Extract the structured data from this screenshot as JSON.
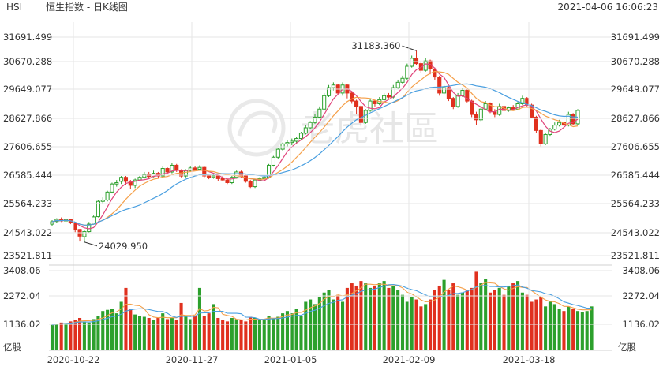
{
  "header": {
    "symbol": "HSI",
    "title": "恒生指数 - 日K线图",
    "timestamp": "2021-04-06 16:06:23"
  },
  "watermark": {
    "text": "老虎社區"
  },
  "colors": {
    "up": "#2ca02c",
    "down": "#e0301e",
    "ma5": "#e0457b",
    "ma10": "#f5a04a",
    "ma20": "#4a9fe0",
    "grid": "#e6e6e6",
    "axis_text": "#333333"
  },
  "chart_data": [
    {
      "type": "candlestick",
      "title": "",
      "x_tick_labels": [
        "2020-10-22",
        "2020-11-27",
        "2021-01-05",
        "2021-02-09",
        "2021-03-18"
      ],
      "y_tick_labels": [
        "31691.499",
        "30670.288",
        "29649.077",
        "28627.866",
        "27606.655",
        "26585.444",
        "25564.233",
        "24543.022",
        "23521.811"
      ],
      "ylim": [
        23400,
        32000
      ],
      "high_annotation": {
        "label": "31183.360",
        "value": 31183.36
      },
      "low_annotation": {
        "label": "24029.950",
        "value": 24029.95
      },
      "moving_averages": [
        "MA5",
        "MA10",
        "MA20"
      ],
      "candles": [
        {
          "o": 24700,
          "c": 24790,
          "h": 24850,
          "l": 24640
        },
        {
          "o": 24800,
          "c": 24880,
          "h": 24920,
          "l": 24750
        },
        {
          "o": 24880,
          "c": 24820,
          "h": 24950,
          "l": 24780
        },
        {
          "o": 24820,
          "c": 24880,
          "h": 24910,
          "l": 24770
        },
        {
          "o": 24870,
          "c": 24760,
          "h": 24900,
          "l": 24700
        },
        {
          "o": 24760,
          "c": 24500,
          "h": 24780,
          "l": 24400
        },
        {
          "o": 24500,
          "c": 24250,
          "h": 24520,
          "l": 24050
        },
        {
          "o": 24230,
          "c": 24420,
          "h": 24480,
          "l": 24029.95
        },
        {
          "o": 24420,
          "c": 24700,
          "h": 24780,
          "l": 24380
        },
        {
          "o": 24700,
          "c": 24970,
          "h": 25020,
          "l": 24680
        },
        {
          "o": 24980,
          "c": 25550,
          "h": 25600,
          "l": 24950
        },
        {
          "o": 25550,
          "c": 25600,
          "h": 25700,
          "l": 25450
        },
        {
          "o": 25600,
          "c": 25900,
          "h": 25950,
          "l": 25550
        },
        {
          "o": 25900,
          "c": 26200,
          "h": 26250,
          "l": 25850
        },
        {
          "o": 26200,
          "c": 26250,
          "h": 26350,
          "l": 26100
        },
        {
          "o": 26300,
          "c": 26450,
          "h": 26500,
          "l": 26200
        },
        {
          "o": 26450,
          "c": 26300,
          "h": 26500,
          "l": 26150
        },
        {
          "o": 26300,
          "c": 26150,
          "h": 26350,
          "l": 26000
        },
        {
          "o": 26150,
          "c": 26350,
          "h": 26400,
          "l": 26050
        },
        {
          "o": 26350,
          "c": 26450,
          "h": 26500,
          "l": 26300
        },
        {
          "o": 26450,
          "c": 26550,
          "h": 26650,
          "l": 26400
        },
        {
          "o": 26550,
          "c": 26480,
          "h": 26650,
          "l": 26400
        },
        {
          "o": 26480,
          "c": 26600,
          "h": 26700,
          "l": 26450
        },
        {
          "o": 26600,
          "c": 26500,
          "h": 26650,
          "l": 26400
        },
        {
          "o": 26500,
          "c": 26780,
          "h": 26850,
          "l": 26450
        },
        {
          "o": 26780,
          "c": 26650,
          "h": 26820,
          "l": 26600
        },
        {
          "o": 26650,
          "c": 26900,
          "h": 26980,
          "l": 26600
        },
        {
          "o": 26900,
          "c": 26720,
          "h": 26950,
          "l": 26650
        },
        {
          "o": 26720,
          "c": 26500,
          "h": 26750,
          "l": 26450
        },
        {
          "o": 26500,
          "c": 26700,
          "h": 26750,
          "l": 26450
        },
        {
          "o": 26700,
          "c": 26800,
          "h": 26850,
          "l": 26650
        },
        {
          "o": 26800,
          "c": 26750,
          "h": 26880,
          "l": 26700
        },
        {
          "o": 26750,
          "c": 26820,
          "h": 26900,
          "l": 26700
        },
        {
          "o": 26820,
          "c": 26500,
          "h": 26850,
          "l": 26450
        },
        {
          "o": 26500,
          "c": 26450,
          "h": 26550,
          "l": 26380
        },
        {
          "o": 26450,
          "c": 26500,
          "h": 26580,
          "l": 26400
        },
        {
          "o": 26500,
          "c": 26400,
          "h": 26550,
          "l": 26300
        },
        {
          "o": 26400,
          "c": 26350,
          "h": 26500,
          "l": 26300
        },
        {
          "o": 26350,
          "c": 26250,
          "h": 26400,
          "l": 26200
        },
        {
          "o": 26250,
          "c": 26450,
          "h": 26500,
          "l": 26200
        },
        {
          "o": 26450,
          "c": 26650,
          "h": 26700,
          "l": 26400
        },
        {
          "o": 26650,
          "c": 26500,
          "h": 26700,
          "l": 26450
        },
        {
          "o": 26500,
          "c": 26300,
          "h": 26550,
          "l": 26250
        },
        {
          "o": 26300,
          "c": 26100,
          "h": 26350,
          "l": 26050
        },
        {
          "o": 26100,
          "c": 26350,
          "h": 26400,
          "l": 26050
        },
        {
          "o": 26350,
          "c": 26400,
          "h": 26450,
          "l": 26300
        },
        {
          "o": 26400,
          "c": 26450,
          "h": 26500,
          "l": 26350
        },
        {
          "o": 26450,
          "c": 26900,
          "h": 26950,
          "l": 26400
        },
        {
          "o": 26900,
          "c": 27200,
          "h": 27250,
          "l": 26850
        },
        {
          "o": 27200,
          "c": 27500,
          "h": 27550,
          "l": 27150
        },
        {
          "o": 27500,
          "c": 27700,
          "h": 27750,
          "l": 27450
        },
        {
          "o": 27700,
          "c": 27750,
          "h": 27850,
          "l": 27600
        },
        {
          "o": 27750,
          "c": 27800,
          "h": 27900,
          "l": 27650
        },
        {
          "o": 27800,
          "c": 27900,
          "h": 27950,
          "l": 27700
        },
        {
          "o": 27900,
          "c": 28100,
          "h": 28150,
          "l": 27850
        },
        {
          "o": 28100,
          "c": 28300,
          "h": 28400,
          "l": 28050
        },
        {
          "o": 28300,
          "c": 28500,
          "h": 28550,
          "l": 28250
        },
        {
          "o": 28500,
          "c": 28700,
          "h": 28800,
          "l": 28450
        },
        {
          "o": 28700,
          "c": 29000,
          "h": 29100,
          "l": 28650
        },
        {
          "o": 29000,
          "c": 29500,
          "h": 29600,
          "l": 28950
        },
        {
          "o": 29500,
          "c": 29800,
          "h": 29900,
          "l": 29450
        },
        {
          "o": 29800,
          "c": 29900,
          "h": 30000,
          "l": 29700
        },
        {
          "o": 29900,
          "c": 29600,
          "h": 29950,
          "l": 29550
        },
        {
          "o": 29600,
          "c": 29900,
          "h": 30000,
          "l": 29500
        },
        {
          "o": 29900,
          "c": 29600,
          "h": 29950,
          "l": 29400
        },
        {
          "o": 29600,
          "c": 29300,
          "h": 29650,
          "l": 29200
        },
        {
          "o": 29300,
          "c": 29100,
          "h": 29350,
          "l": 28800
        },
        {
          "o": 29100,
          "c": 28500,
          "h": 29150,
          "l": 28350
        },
        {
          "o": 28500,
          "c": 28950,
          "h": 29000,
          "l": 28450
        },
        {
          "o": 28950,
          "c": 29300,
          "h": 29400,
          "l": 28900
        },
        {
          "o": 29300,
          "c": 29200,
          "h": 29350,
          "l": 29100
        },
        {
          "o": 29200,
          "c": 29350,
          "h": 29450,
          "l": 29150
        },
        {
          "o": 29350,
          "c": 29500,
          "h": 29600,
          "l": 29300
        },
        {
          "o": 29500,
          "c": 29450,
          "h": 29600,
          "l": 29400
        },
        {
          "o": 29450,
          "c": 29800,
          "h": 29900,
          "l": 29400
        },
        {
          "o": 29800,
          "c": 30000,
          "h": 30100,
          "l": 29750
        },
        {
          "o": 30000,
          "c": 30150,
          "h": 30250,
          "l": 29950
        },
        {
          "o": 30150,
          "c": 30600,
          "h": 30700,
          "l": 30100
        },
        {
          "o": 30600,
          "c": 30900,
          "h": 31000,
          "l": 30550
        },
        {
          "o": 30900,
          "c": 30700,
          "h": 31183.36,
          "l": 30650
        },
        {
          "o": 30700,
          "c": 30450,
          "h": 30800,
          "l": 30350
        },
        {
          "o": 30450,
          "c": 30800,
          "h": 30900,
          "l": 30400
        },
        {
          "o": 30800,
          "c": 30500,
          "h": 30850,
          "l": 30300
        },
        {
          "o": 30500,
          "c": 30200,
          "h": 30550,
          "l": 30100
        },
        {
          "o": 30200,
          "c": 29600,
          "h": 30250,
          "l": 29500
        },
        {
          "o": 29600,
          "c": 29800,
          "h": 29900,
          "l": 29550
        },
        {
          "o": 29800,
          "c": 29400,
          "h": 29850,
          "l": 29300
        },
        {
          "o": 29400,
          "c": 29100,
          "h": 29450,
          "l": 29000
        },
        {
          "o": 29100,
          "c": 29500,
          "h": 29600,
          "l": 29050
        },
        {
          "o": 29500,
          "c": 29700,
          "h": 29800,
          "l": 29450
        },
        {
          "o": 29700,
          "c": 29300,
          "h": 29750,
          "l": 29250
        },
        {
          "o": 29300,
          "c": 28800,
          "h": 29350,
          "l": 28700
        },
        {
          "o": 28800,
          "c": 28600,
          "h": 28900,
          "l": 28400
        },
        {
          "o": 28600,
          "c": 29000,
          "h": 29100,
          "l": 28550
        },
        {
          "o": 29000,
          "c": 29200,
          "h": 29300,
          "l": 28950
        },
        {
          "o": 29200,
          "c": 28900,
          "h": 29250,
          "l": 28850
        },
        {
          "o": 28900,
          "c": 28800,
          "h": 29000,
          "l": 28700
        },
        {
          "o": 28800,
          "c": 29100,
          "h": 29200,
          "l": 28750
        },
        {
          "o": 29100,
          "c": 28950,
          "h": 29150,
          "l": 28900
        },
        {
          "o": 28950,
          "c": 29050,
          "h": 29100,
          "l": 28900
        },
        {
          "o": 29050,
          "c": 29000,
          "h": 29150,
          "l": 28950
        },
        {
          "o": 29000,
          "c": 29200,
          "h": 29300,
          "l": 28950
        },
        {
          "o": 29200,
          "c": 29400,
          "h": 29500,
          "l": 29150
        },
        {
          "o": 29400,
          "c": 29150,
          "h": 29450,
          "l": 29100
        },
        {
          "o": 29150,
          "c": 28700,
          "h": 29200,
          "l": 28650
        },
        {
          "o": 28700,
          "c": 28200,
          "h": 28750,
          "l": 28100
        },
        {
          "o": 28200,
          "c": 27700,
          "h": 28250,
          "l": 27600
        },
        {
          "o": 27700,
          "c": 28050,
          "h": 28100,
          "l": 27650
        },
        {
          "o": 28050,
          "c": 28250,
          "h": 28300,
          "l": 28000
        },
        {
          "o": 28250,
          "c": 28400,
          "h": 28500,
          "l": 28200
        },
        {
          "o": 28400,
          "c": 28500,
          "h": 28600,
          "l": 28350
        },
        {
          "o": 28500,
          "c": 28400,
          "h": 28550,
          "l": 28350
        },
        {
          "o": 28400,
          "c": 28800,
          "h": 28900,
          "l": 28350
        },
        {
          "o": 28800,
          "c": 28450,
          "h": 28850,
          "l": 28400
        },
        {
          "o": 28450,
          "c": 28950,
          "h": 29000,
          "l": 28400
        }
      ]
    },
    {
      "type": "bar",
      "title": "",
      "unit_label": "亿股",
      "y_tick_labels": [
        "3408.06",
        "2272.04",
        "1136.02"
      ],
      "ylim": [
        0,
        3550
      ],
      "moving_averages": [
        "MA5",
        "MA10"
      ],
      "volumes": [
        1100,
        1150,
        1200,
        1180,
        1250,
        1300,
        1400,
        1250,
        1200,
        1350,
        1500,
        1700,
        1750,
        1800,
        1600,
        2100,
        2700,
        1800,
        1550,
        1500,
        1450,
        1400,
        1300,
        1400,
        1600,
        1350,
        1400,
        1300,
        2050,
        1450,
        1350,
        1500,
        2700,
        1500,
        1600,
        2000,
        1400,
        1300,
        1250,
        1400,
        1350,
        1300,
        1250,
        1450,
        1400,
        1300,
        1350,
        1500,
        1400,
        1450,
        1600,
        1700,
        1600,
        1800,
        1500,
        2100,
        2200,
        2000,
        2300,
        2500,
        2600,
        2200,
        2400,
        2100,
        2700,
        2900,
        2800,
        3000,
        2900,
        2700,
        2800,
        2900,
        3000,
        2700,
        2800,
        2600,
        2400,
        2100,
        2300,
        2200,
        1900,
        2000,
        2200,
        2600,
        2800,
        3050,
        2600,
        2900,
        2400,
        2500,
        2600,
        2700,
        3400,
        2900,
        3100,
        2500,
        2600,
        2700,
        2400,
        2800,
        2900,
        3000,
        2500,
        2400,
        2100,
        2200,
        2300,
        1900,
        2100,
        2000,
        1800,
        1700,
        1900,
        1800,
        1700,
        1650,
        1700,
        1900
      ]
    }
  ]
}
